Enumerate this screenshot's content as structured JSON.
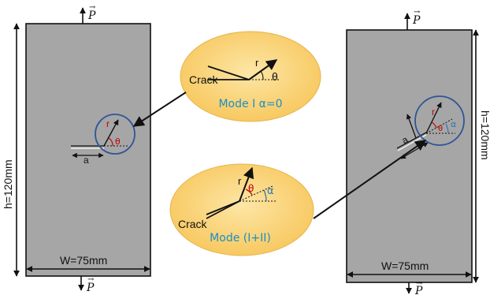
{
  "left_specimen": {
    "load_top": "P",
    "load_bottom": "P",
    "height_label": "h=120mm",
    "width_label": "W=75mm",
    "crack_length_label": "a",
    "radius_label": "r",
    "angle_label": "θ"
  },
  "right_specimen": {
    "load_top": "P",
    "load_bottom": "P",
    "height_label": "h=120mm",
    "width_label": "W=75mm",
    "crack_length_label": "a",
    "radius_label": "r",
    "angle_label": "θ",
    "inclination_label": "α"
  },
  "mode_one_bubble": {
    "crack_label": "Crack",
    "radius_label": "r",
    "angle_label": "θ",
    "caption": "Mode I α=0"
  },
  "mixed_mode_bubble": {
    "crack_label": "Crack",
    "radius_label": "r",
    "angle_label": "θ",
    "inclination_label": "α",
    "caption": "Mode (I+II)"
  },
  "colors": {
    "specimen_fill": "#a6a6a6",
    "bubble_fill": "#f9cc6e",
    "zoom_circle": "#2f5597",
    "angle_theta": "#c00000",
    "angle_alpha": "#2e75b6",
    "caption": "#1a8fc4"
  }
}
